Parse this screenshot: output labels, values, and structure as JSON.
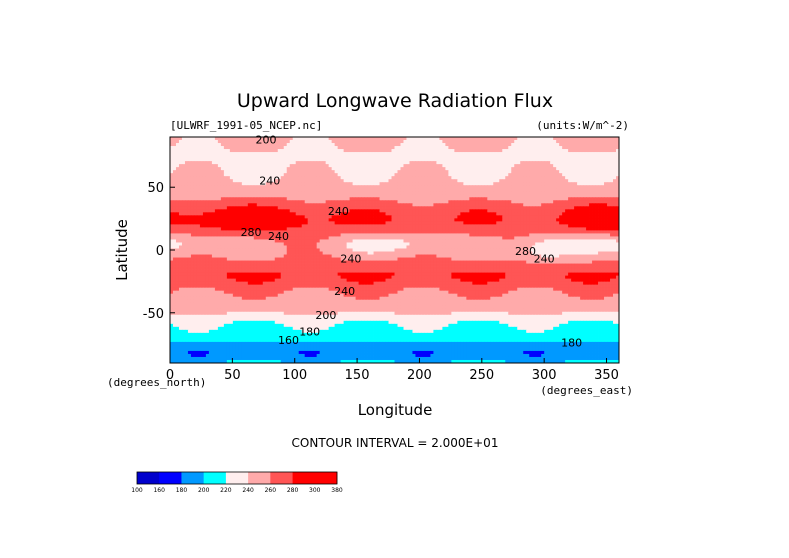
{
  "chart_data": {
    "type": "heatmap",
    "title": "Upward Longwave Radiation Flux",
    "file_label": "[ULWRF_1991-05_NCEP.nc]",
    "units_label": "(units:W/m^-2)",
    "xlabel": "Longitude",
    "ylabel": "Latitude",
    "x_unit_label": "(degrees_east)",
    "y_unit_label": "(degrees_north)",
    "xlim": [
      0,
      360
    ],
    "ylim": [
      -90,
      90
    ],
    "x_ticks": [
      0,
      50,
      100,
      150,
      200,
      250,
      300,
      350
    ],
    "y_ticks": [
      50,
      0,
      -50
    ],
    "contour_interval_text": "CONTOUR INTERVAL = 2.000E+01",
    "colorbar": {
      "levels": [
        "100",
        "160",
        "180",
        "200",
        "220",
        "240",
        "260",
        "280",
        "300",
        "380"
      ],
      "colors": [
        "#0000cc",
        "#0000ff",
        "#0099ff",
        "#00ffff",
        "#ffeeee",
        "#ffaaaa",
        "#ff5555",
        "#ff0000",
        "#ff0000"
      ]
    },
    "contour_labels": [
      {
        "lon": 77,
        "lat": 85,
        "text": "200"
      },
      {
        "lon": 80,
        "lat": 52,
        "text": "240"
      },
      {
        "lon": 135,
        "lat": 28,
        "text": "240"
      },
      {
        "lon": 65,
        "lat": 11,
        "text": "280"
      },
      {
        "lon": 87,
        "lat": 8,
        "text": "240"
      },
      {
        "lon": 145,
        "lat": -10,
        "text": "240"
      },
      {
        "lon": 140,
        "lat": -36,
        "text": "240"
      },
      {
        "lon": 125,
        "lat": -55,
        "text": "200"
      },
      {
        "lon": 112,
        "lat": -68,
        "text": "180"
      },
      {
        "lon": 95,
        "lat": -75,
        "text": "160"
      },
      {
        "lon": 285,
        "lat": -4,
        "text": "280"
      },
      {
        "lon": 300,
        "lat": -10,
        "text": "240"
      },
      {
        "lon": 322,
        "lat": -77,
        "text": "180"
      }
    ]
  }
}
